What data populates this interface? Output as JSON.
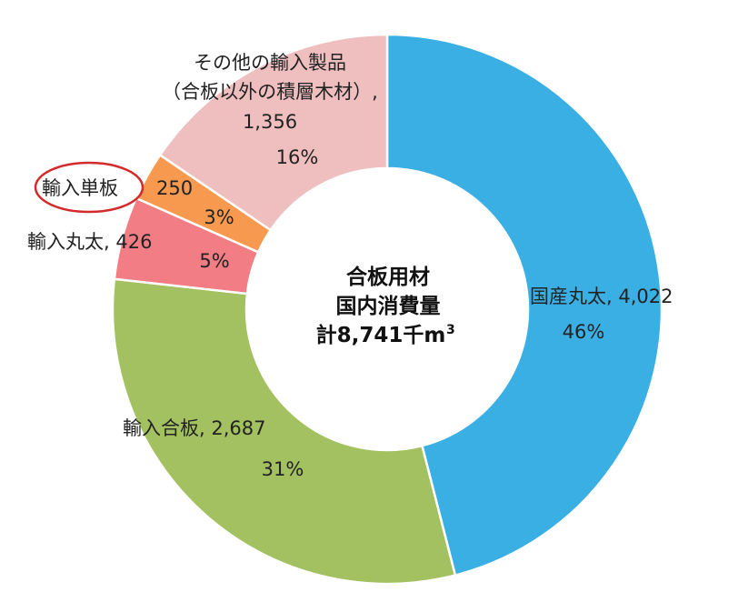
{
  "chart_data": {
    "type": "pie",
    "title": "",
    "center_label": {
      "line1": "合板用材",
      "line2": "国内消費量",
      "line3": "計8,741千m",
      "unit_superscript": "3"
    },
    "slices": [
      {
        "name": "国産丸太",
        "value_label": "4,022",
        "value": 4022,
        "percent": "46%",
        "color": "#3aafe4"
      },
      {
        "name": "輸入合板",
        "value_label": "2,687",
        "value": 2687,
        "percent": "31%",
        "color": "#a3c161"
      },
      {
        "name": "輸入丸太",
        "value_label": "426",
        "value": 426,
        "percent": "5%",
        "color": "#f27d85"
      },
      {
        "name": "輸入単板",
        "value_label": "250",
        "value": 250,
        "percent": "3%",
        "color": "#f79a4f",
        "highlighted": true
      },
      {
        "name": "その他の輸入製品",
        "name_line2": "（合板以外の積層木材）,",
        "value_label": "1,356",
        "value": 1356,
        "percent": "16%",
        "color": "#efbfbf"
      }
    ],
    "highlight_color": "#d22b2b"
  },
  "labels": {
    "domestic_logs": "国産丸太, 4,022",
    "domestic_logs_pct": "46%",
    "import_plywood": "輸入合板, 2,687",
    "import_plywood_pct": "31%",
    "import_logs": "輸入丸太, 426",
    "import_logs_pct": "5%",
    "import_veneer_name": "輸入単板",
    "import_veneer_value": "250",
    "import_veneer_pct": "3%",
    "other_line1": "その他の輸入製品",
    "other_line2": "（合板以外の積層木材）,",
    "other_value": "1,356",
    "other_pct": "16%"
  }
}
